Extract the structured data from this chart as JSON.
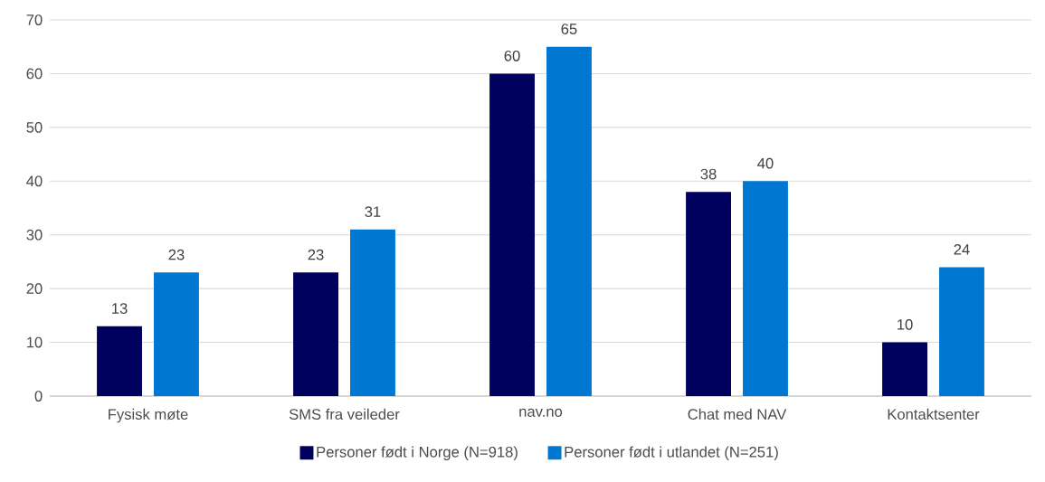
{
  "chart_data": {
    "type": "bar",
    "categories": [
      "Fysisk møte",
      "SMS fra veileder",
      "nav.no",
      "Chat med NAV",
      "Kontaktsenter"
    ],
    "series": [
      {
        "name": "Personer født i Norge (N=918)",
        "color": "#00005e",
        "values": [
          13,
          23,
          60,
          38,
          10
        ]
      },
      {
        "name": "Personer født i utlandet (N=251)",
        "color": "#0078d2",
        "values": [
          23,
          31,
          65,
          40,
          24
        ]
      }
    ],
    "ylim": [
      0,
      70
    ],
    "yticks": [
      0,
      10,
      20,
      30,
      40,
      50,
      60,
      70
    ],
    "grid": "y",
    "legend": "bottom",
    "data_labels": true
  }
}
